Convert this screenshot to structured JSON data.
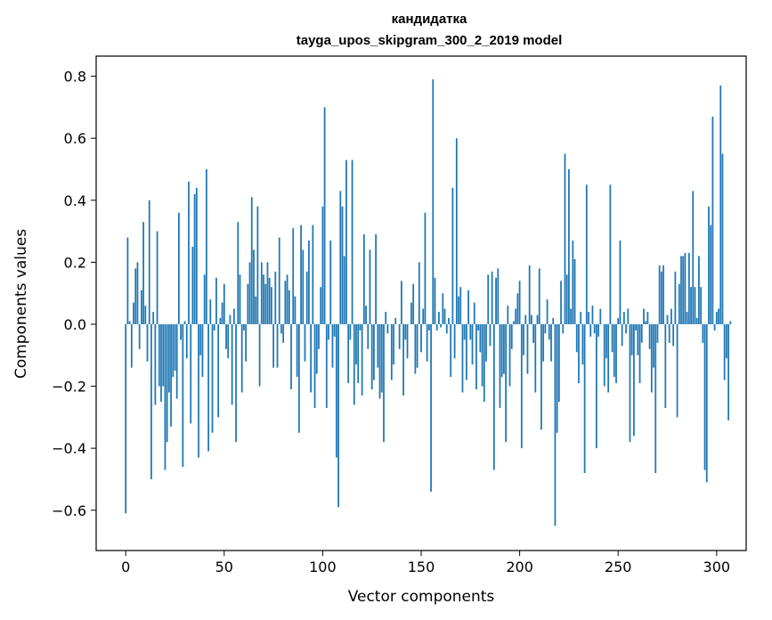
{
  "chart_data": {
    "type": "bar",
    "title": "кандидатка",
    "subtitle": "tayga_upos_skipgram_300_2_2019 model",
    "xlabel": "Vector components",
    "ylabel": "Components values",
    "xlim": [
      -15,
      315
    ],
    "ylim": [
      -0.73,
      0.865
    ],
    "xticks": [
      0,
      50,
      100,
      150,
      200,
      250,
      300
    ],
    "xtick_labels": [
      "0",
      "50",
      "100",
      "150",
      "200",
      "250",
      "300"
    ],
    "yticks": [
      -0.6,
      -0.4,
      -0.2,
      0.0,
      0.2,
      0.4,
      0.6,
      0.8
    ],
    "ytick_labels": [
      "−0.6",
      "−0.4",
      "−0.2",
      "0.0",
      "0.2",
      "0.4",
      "0.6",
      "0.8"
    ],
    "grid": false,
    "bar_color": "#1f77b4",
    "values": [
      -0.61,
      0.28,
      0.01,
      -0.14,
      0.07,
      0.18,
      0.2,
      -0.08,
      0.11,
      0.33,
      0.06,
      -0.12,
      0.4,
      -0.5,
      0.04,
      -0.26,
      0.3,
      -0.2,
      -0.25,
      -0.2,
      -0.47,
      -0.38,
      -0.22,
      -0.33,
      -0.17,
      -0.15,
      -0.24,
      0.36,
      -0.05,
      -0.46,
      0.01,
      -0.11,
      0.46,
      -0.32,
      0.25,
      0.42,
      0.44,
      -0.43,
      -0.1,
      -0.17,
      0.16,
      0.5,
      -0.41,
      0.08,
      -0.35,
      -0.02,
      0.15,
      -0.3,
      0.02,
      0.07,
      0.13,
      -0.08,
      -0.11,
      0.03,
      -0.26,
      0.05,
      -0.38,
      0.33,
      0.16,
      -0.22,
      -0.02,
      -0.12,
      0.13,
      0.2,
      0.41,
      0.24,
      0.09,
      0.38,
      -0.2,
      0.2,
      0.16,
      0.13,
      0.2,
      0.15,
      0.12,
      -0.14,
      0.17,
      -0.14,
      0.28,
      -0.03,
      -0.06,
      0.14,
      0.16,
      0.11,
      -0.21,
      0.31,
      0.09,
      -0.17,
      -0.35,
      0.32,
      0.24,
      -0.12,
      0.17,
      0.27,
      -0.22,
      0.32,
      -0.27,
      -0.16,
      -0.08,
      0.12,
      0.38,
      0.7,
      -0.27,
      -0.05,
      0.27,
      -0.14,
      -0.04,
      -0.43,
      -0.59,
      0.43,
      0.38,
      0.22,
      0.53,
      -0.19,
      -0.05,
      0.53,
      -0.26,
      -0.13,
      -0.19,
      -0.02,
      -0.23,
      0.29,
      0.06,
      -0.08,
      0.24,
      -0.21,
      -0.18,
      0.29,
      -0.14,
      -0.24,
      -0.22,
      -0.38,
      0.04,
      -0.03,
      0.0,
      -0.18,
      -0.13,
      0.02,
      0.0,
      -0.08,
      0.14,
      -0.23,
      -0.05,
      -0.11,
      0.0,
      0.07,
      0.13,
      -0.16,
      -0.14,
      0.2,
      -0.09,
      0.05,
      0.36,
      -0.12,
      -0.02,
      -0.54,
      0.79,
      0.15,
      -0.02,
      0.04,
      -0.01,
      0.1,
      0.05,
      -0.03,
      0.02,
      -0.17,
      0.44,
      -0.11,
      0.6,
      0.09,
      0.12,
      -0.22,
      -0.05,
      -0.18,
      0.11,
      -0.05,
      -0.13,
      0.07,
      -0.21,
      -0.02,
      -0.09,
      -0.2,
      -0.25,
      -0.12,
      0.16,
      -0.07,
      0.17,
      -0.47,
      0.15,
      0.18,
      -0.27,
      -0.17,
      -0.16,
      -0.38,
      0.06,
      -0.2,
      -0.08,
      0.01,
      0.05,
      0.1,
      0.14,
      -0.4,
      -0.1,
      0.03,
      -0.16,
      0.19,
      0.03,
      -0.06,
      -0.22,
      0.03,
      0.18,
      -0.34,
      -0.12,
      -0.03,
      0.08,
      -0.05,
      -0.12,
      0.02,
      -0.65,
      -0.35,
      -0.25,
      0.14,
      -0.03,
      0.55,
      0.16,
      0.5,
      0.05,
      0.27,
      0.21,
      -0.09,
      -0.19,
      0.04,
      -0.13,
      -0.48,
      0.45,
      0.04,
      -0.04,
      0.06,
      -0.03,
      -0.4,
      -0.04,
      0.05,
      0.0,
      -0.2,
      -0.11,
      -0.22,
      0.45,
      -0.09,
      -0.17,
      -0.19,
      0.02,
      0.27,
      -0.07,
      0.04,
      -0.03,
      0.05,
      -0.38,
      -0.1,
      -0.36,
      -0.02,
      -0.1,
      -0.19,
      -0.06,
      0.05,
      0.01,
      0.04,
      -0.08,
      -0.22,
      -0.14,
      -0.48,
      -0.06,
      0.19,
      0.17,
      0.19,
      -0.27,
      0.03,
      -0.06,
      0.05,
      -0.07,
      0.17,
      -0.3,
      0.13,
      0.22,
      0.22,
      0.23,
      0.04,
      0.23,
      0.12,
      0.43,
      0.12,
      0.02,
      0.22,
      0.12,
      -0.06,
      -0.47,
      -0.51,
      0.38,
      0.32,
      0.67,
      -0.02,
      0.04,
      0.05,
      0.77,
      0.55,
      -0.18,
      -0.11,
      -0.31,
      0.01
    ]
  }
}
